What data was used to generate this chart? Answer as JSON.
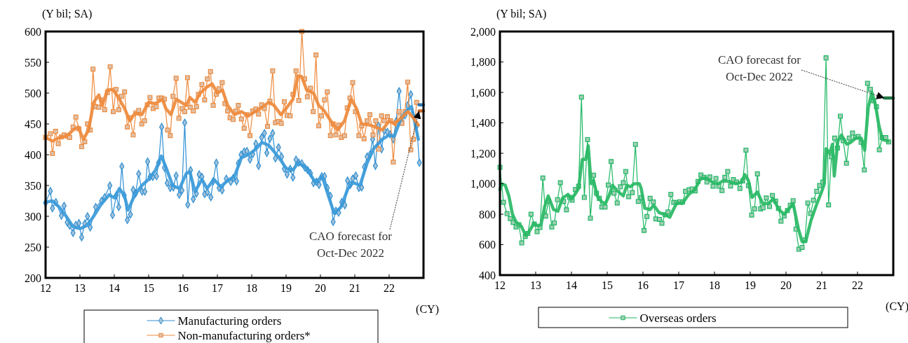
{
  "chart_data": [
    {
      "type": "line",
      "ylabel": "(Y bil; SA)",
      "xlabel": "(CY)",
      "xlim": [
        12,
        23
      ],
      "xticks": [
        12,
        13,
        14,
        15,
        16,
        17,
        18,
        19,
        20,
        21,
        22
      ],
      "ylim": [
        200,
        600
      ],
      "yticks": [
        200,
        250,
        300,
        350,
        400,
        450,
        500,
        550,
        600
      ],
      "grid": false,
      "legend": "bottom",
      "annotations": [
        {
          "text": "CAO forecast for\nOct-Dec 2022",
          "x": 22.87,
          "y": 471
        }
      ],
      "series": [
        {
          "name": "Manufacturing orders",
          "color": "#2e8fd4",
          "marker": "diamond",
          "x": [
            12.0,
            12.14,
            12.2,
            12.3,
            12.46,
            12.54,
            12.63,
            12.7,
            12.8,
            12.88,
            12.97,
            13.05,
            13.14,
            13.22,
            13.3,
            13.46,
            13.63,
            13.72,
            13.87,
            13.95,
            14.06,
            14.13,
            14.22,
            14.29,
            14.38,
            14.47,
            14.55,
            14.62,
            14.71,
            14.81,
            14.89,
            14.97,
            15.04,
            15.12,
            15.23,
            15.29,
            15.38,
            15.46,
            15.54,
            15.63,
            15.72,
            15.8,
            15.89,
            15.97,
            16.05,
            16.14,
            16.22,
            16.3,
            16.39,
            16.47,
            16.55,
            16.63,
            16.71,
            16.81,
            16.88,
            16.97,
            17.05,
            17.14,
            17.26,
            17.39,
            17.46,
            17.56,
            17.61,
            17.69,
            17.78,
            17.86,
            17.95,
            18.03,
            18.12,
            18.2,
            18.29,
            18.37,
            18.44,
            18.53,
            18.61,
            18.69,
            18.78,
            18.87,
            18.95,
            19.03,
            19.12,
            19.2,
            19.29,
            19.37,
            19.46,
            19.55,
            19.63,
            19.71,
            19.8,
            19.88,
            19.96,
            20.04,
            20.12,
            20.2,
            20.29,
            20.37,
            20.45,
            20.53,
            20.62,
            20.71,
            20.79,
            20.87,
            20.94,
            21.03,
            21.12,
            21.2,
            21.28,
            21.36,
            21.44,
            21.52,
            21.6,
            21.69,
            21.78,
            21.86,
            21.95,
            22.03,
            22.12,
            22.2,
            22.29,
            22.37,
            22.46,
            22.54,
            22.63,
            22.71,
            22.8,
            22.88
          ],
          "values": [
            322,
            341,
            313,
            323,
            301,
            317,
            290,
            285,
            273,
            286,
            289,
            266,
            288,
            300,
            282,
            315,
            325,
            331,
            350,
            302,
            334,
            315,
            381,
            334,
            294,
            303,
            343,
            337,
            369,
            340,
            340,
            389,
            364,
            364,
            365,
            387,
            445,
            379,
            354,
            346,
            347,
            366,
            335,
            342,
            452,
            319,
            375,
            328,
            337,
            368,
            364,
            336,
            339,
            331,
            357,
            387,
            346,
            342,
            361,
            356,
            362,
            357,
            386,
            400,
            405,
            406,
            392,
            401,
            418,
            382,
            428,
            435,
            403,
            426,
            435,
            394,
            412,
            397,
            377,
            368,
            377,
            363,
            392,
            387,
            386,
            379,
            375,
            370,
            354,
            356,
            351,
            365,
            365,
            346,
            333,
            291,
            309,
            306,
            323,
            318,
            358,
            351,
            361,
            366,
            346,
            347,
            380,
            397,
            400,
            425,
            382,
            447,
            409,
            439,
            437,
            433,
            425,
            454,
            503,
            454,
            464,
            480,
            498,
            462,
            447,
            387
          ]
        },
        {
          "name": "Non-manufacturing orders*",
          "color": "#ee8a3c",
          "marker": "square",
          "x": [
            12.0,
            12.14,
            12.2,
            12.29,
            12.37,
            12.46,
            12.54,
            12.63,
            12.7,
            12.8,
            12.88,
            12.97,
            13.05,
            13.14,
            13.22,
            13.3,
            13.38,
            13.46,
            13.55,
            13.63,
            13.72,
            13.8,
            13.88,
            13.97,
            14.05,
            14.13,
            14.21,
            14.3,
            14.38,
            14.46,
            14.55,
            14.63,
            14.71,
            14.8,
            14.88,
            14.96,
            15.04,
            15.13,
            15.22,
            15.3,
            15.38,
            15.46,
            15.55,
            15.63,
            15.71,
            15.8,
            15.88,
            15.97,
            16.05,
            16.13,
            16.21,
            16.3,
            16.39,
            16.45,
            16.55,
            16.63,
            16.71,
            16.8,
            16.88,
            16.97,
            17.05,
            17.14,
            17.22,
            17.3,
            17.37,
            17.46,
            17.54,
            17.61,
            17.7,
            17.78,
            17.86,
            17.95,
            18.03,
            18.12,
            18.2,
            18.29,
            18.37,
            18.46,
            18.53,
            18.61,
            18.69,
            18.78,
            18.86,
            18.95,
            19.03,
            19.12,
            19.2,
            19.29,
            19.37,
            19.46,
            19.54,
            19.62,
            19.71,
            19.79,
            19.87,
            19.95,
            20.03,
            20.12,
            20.2,
            20.29,
            20.37,
            20.45,
            20.53,
            20.61,
            20.7,
            20.78,
            20.86,
            20.94,
            21.02,
            21.12,
            21.2,
            21.27,
            21.36,
            21.44,
            21.53,
            21.61,
            21.69,
            21.78,
            21.86,
            21.95,
            22.04,
            22.12,
            22.2,
            22.29,
            22.37,
            22.46,
            22.54,
            22.63,
            22.71,
            22.8
          ],
          "values": [
            428,
            434,
            402,
            438,
            418,
            429,
            432,
            430,
            428,
            445,
            461,
            442,
            413,
            421,
            450,
            440,
            539,
            478,
            477,
            489,
            473,
            501,
            543,
            470,
            506,
            473,
            495,
            502,
            445,
            460,
            432,
            468,
            472,
            450,
            455,
            481,
            493,
            475,
            478,
            492,
            492,
            490,
            440,
            431,
            495,
            524,
            459,
            475,
            470,
            525,
            477,
            471,
            478,
            498,
            514,
            489,
            523,
            535,
            480,
            498,
            507,
            517,
            483,
            471,
            460,
            457,
            471,
            480,
            458,
            443,
            465,
            431,
            471,
            474,
            466,
            481,
            475,
            446,
            487,
            536,
            452,
            454,
            451,
            486,
            464,
            463,
            498,
            536,
            488,
            600,
            523,
            494,
            508,
            470,
            562,
            447,
            463,
            489,
            502,
            431,
            450,
            432,
            448,
            428,
            431,
            476,
            492,
            517,
            470,
            431,
            447,
            426,
            455,
            465,
            432,
            455,
            409,
            463,
            455,
            462,
            455,
            388,
            451,
            470,
            451,
            470,
            518,
            408,
            425,
            485
          ]
        },
        {
          "color": "#3a9ad9",
          "marker": "none",
          "x": [
            12.0,
            12.2,
            12.4,
            12.6,
            12.8,
            13.0,
            13.2,
            13.4,
            13.6,
            13.85,
            14.0,
            14.15,
            14.3,
            14.4,
            14.6,
            14.8,
            15.0,
            15.2,
            15.37,
            15.5,
            15.7,
            15.9,
            16.1,
            16.2,
            16.35,
            16.55,
            16.7,
            16.9,
            17.1,
            17.3,
            17.5,
            17.7,
            17.9,
            18.1,
            18.3,
            18.5,
            18.8,
            19.0,
            19.2,
            19.35,
            19.6,
            19.85,
            20.05,
            20.25,
            20.4,
            20.6,
            20.8,
            20.95,
            21.15,
            21.35,
            21.55,
            21.8,
            22.0,
            22.15,
            22.35,
            22.5,
            22.65,
            22.85
          ],
          "values": [
            323,
            325,
            315,
            300,
            283,
            280,
            285,
            300,
            318,
            335,
            330,
            345,
            333,
            310,
            335,
            350,
            360,
            375,
            398,
            380,
            350,
            345,
            370,
            372,
            340,
            360,
            345,
            360,
            348,
            358,
            365,
            395,
            400,
            408,
            420,
            415,
            395,
            378,
            375,
            387,
            378,
            355,
            365,
            330,
            305,
            315,
            345,
            355,
            350,
            385,
            410,
            425,
            432,
            430,
            460,
            470,
            478,
            425
          ]
        },
        {
          "color": "#ee8a3c",
          "marker": "none",
          "x": [
            12.0,
            12.2,
            12.4,
            12.6,
            12.8,
            12.95,
            13.1,
            13.25,
            13.4,
            13.55,
            13.65,
            13.8,
            13.95,
            14.1,
            14.3,
            14.45,
            14.6,
            14.8,
            15.0,
            15.2,
            15.4,
            15.5,
            15.65,
            15.8,
            15.95,
            16.1,
            16.2,
            16.35,
            16.5,
            16.7,
            16.85,
            17.0,
            17.15,
            17.3,
            17.5,
            17.7,
            17.9,
            18.1,
            18.3,
            18.5,
            18.65,
            18.85,
            19.0,
            19.2,
            19.35,
            19.45,
            19.6,
            19.8,
            19.95,
            20.1,
            20.3,
            20.5,
            20.7,
            20.9,
            21.05,
            21.2,
            21.45,
            21.6,
            21.8,
            22.0,
            22.15,
            22.35,
            22.55,
            22.7,
            22.85
          ],
          "values": [
            428,
            422,
            428,
            430,
            440,
            445,
            425,
            440,
            485,
            497,
            480,
            505,
            506,
            495,
            475,
            455,
            467,
            465,
            485,
            483,
            490,
            475,
            465,
            490,
            485,
            480,
            493,
            485,
            500,
            510,
            515,
            500,
            505,
            480,
            465,
            470,
            463,
            470,
            477,
            485,
            480,
            465,
            475,
            490,
            528,
            527,
            505,
            500,
            480,
            472,
            455,
            440,
            455,
            490,
            475,
            450,
            448,
            445,
            440,
            455,
            450,
            460,
            470,
            460,
            448
          ]
        },
        {
          "color": "#1f6fae",
          "marker": "none",
          "x": [
            22.87,
            23
          ],
          "values": [
            481,
            481
          ]
        },
        {
          "color": "#c55a11",
          "marker": "none",
          "x": [
            22.87,
            23
          ],
          "values": [
            471,
            471
          ]
        }
      ]
    },
    {
      "type": "line",
      "ylabel": "(Y bil; SA)",
      "xlabel": "(CY)",
      "xlim": [
        12,
        23
      ],
      "xticks": [
        12,
        13,
        14,
        15,
        16,
        17,
        18,
        19,
        20,
        21,
        22
      ],
      "ylim": [
        400,
        2000
      ],
      "yticks": [
        {
          "value": 400,
          "label": "400"
        },
        {
          "value": 600,
          "label": "600"
        },
        {
          "value": 800,
          "label": "800"
        },
        {
          "value": 1000,
          "label": "1,000"
        },
        {
          "value": 1200,
          "label": "1,200"
        },
        {
          "value": 1400,
          "label": "1,400"
        },
        {
          "value": 1600,
          "label": "1,600"
        },
        {
          "value": 1800,
          "label": "1,800"
        },
        {
          "value": 2000,
          "label": "2,000"
        }
      ],
      "grid": false,
      "legend": "bottom",
      "annotations": [
        {
          "text": "CAO forecast for\nOct-Dec 2022",
          "x": 22.75,
          "y": 1563
        }
      ],
      "series": [
        {
          "name": "Overseas orders",
          "color": "#1fb863",
          "marker": "square",
          "x": [
            12.0,
            12.1,
            12.2,
            12.29,
            12.37,
            12.45,
            12.53,
            12.61,
            12.71,
            12.78,
            12.87,
            12.96,
            13.04,
            13.12,
            13.2,
            13.28,
            13.36,
            13.45,
            13.52,
            13.61,
            13.69,
            13.78,
            13.86,
            13.95,
            14.02,
            14.11,
            14.2,
            14.28,
            14.36,
            14.45,
            14.53,
            14.62,
            14.7,
            14.78,
            14.85,
            14.94,
            15.03,
            15.11,
            15.19,
            15.28,
            15.37,
            15.45,
            15.52,
            15.6,
            15.7,
            15.79,
            15.87,
            15.95,
            16.03,
            16.11,
            16.2,
            16.29,
            16.36,
            16.46,
            16.53,
            16.62,
            16.7,
            16.78,
            16.86,
            16.94,
            17.03,
            17.11,
            17.19,
            17.29,
            17.38,
            17.46,
            17.54,
            17.62,
            17.71,
            17.79,
            17.87,
            17.96,
            18.04,
            18.12,
            18.21,
            18.29,
            18.37,
            18.45,
            18.53,
            18.62,
            18.71,
            18.79,
            18.88,
            18.95,
            19.04,
            19.12,
            19.2,
            19.29,
            19.36,
            19.45,
            19.54,
            19.62,
            19.71,
            19.79,
            19.86,
            19.95,
            20.04,
            20.12,
            20.2,
            20.28,
            20.36,
            20.45,
            20.53,
            20.61,
            20.69,
            20.77,
            20.86,
            20.94,
            21.03,
            21.12,
            21.19,
            21.27,
            21.36,
            21.44,
            21.52,
            21.6,
            21.69,
            21.77,
            21.86,
            21.94,
            22.02,
            22.1,
            22.19,
            22.28,
            22.36,
            22.45,
            22.53,
            22.61,
            22.69,
            22.79,
            22.87
          ],
          "values": [
            1108,
            878,
            803,
            771,
            746,
            716,
            731,
            611,
            654,
            674,
            800,
            736,
            685,
            713,
            1038,
            788,
            889,
            716,
            743,
            895,
            1007,
            884,
            829,
            910,
            892,
            962,
            984,
            1569,
            910,
            1290,
            774,
            1056,
            938,
            904,
            847,
            847,
            992,
            1146,
            938,
            874,
            980,
            1007,
            1080,
            915,
            942,
            1259,
            884,
            909,
            693,
            785,
            904,
            880,
            769,
            766,
            740,
            797,
            815,
            930,
            877,
            877,
            881,
            880,
            950,
            961,
            965,
            953,
            1015,
            1057,
            1042,
            1011,
            1045,
            984,
            1034,
            984,
            955,
            1042,
            1080,
            985,
            1027,
            1011,
            969,
            1019,
            1221,
            988,
            794,
            835,
            1065,
            835,
            843,
            907,
            851,
            923,
            886,
            838,
            754,
            789,
            824,
            858,
            889,
            702,
            570,
            582,
            631,
            874,
            805,
            892,
            950,
            988,
            1011,
            1827,
            861,
            1177,
            1300,
            1234,
            1444,
            1283,
            1134,
            1300,
            1333,
            1306,
            1310,
            1272,
            1091,
            1660,
            1621,
            1545,
            1506,
            1223,
            1303,
            1303,
            1275
          ]
        },
        {
          "color": "#28b864",
          "marker": "none",
          "x": [
            12.0,
            12.05,
            12.15,
            12.25,
            12.35,
            12.45,
            12.6,
            12.72,
            12.8,
            12.95,
            13.05,
            13.15,
            13.25,
            13.35,
            13.5,
            13.62,
            13.75,
            13.9,
            14.0,
            14.1,
            14.2,
            14.3,
            14.4,
            14.47,
            14.55,
            14.62,
            14.72,
            14.85,
            14.95,
            15.05,
            15.15,
            15.3,
            15.45,
            15.55,
            15.65,
            15.75,
            15.9,
            15.95,
            16.05,
            16.2,
            16.3,
            16.45,
            16.6,
            16.75,
            16.85,
            16.95,
            17.1,
            17.28,
            17.45,
            17.6,
            17.75,
            17.95,
            18.1,
            18.25,
            18.4,
            18.6,
            18.75,
            18.85,
            18.95,
            19.05,
            19.2,
            19.35,
            19.5,
            19.65,
            19.8,
            19.95,
            20.1,
            20.2,
            20.35,
            20.45,
            20.55,
            20.7,
            20.85,
            21.0,
            21.07,
            21.12,
            21.22,
            21.3,
            21.35,
            21.45,
            21.55,
            21.7,
            21.8,
            21.95,
            22.1,
            22.2,
            22.3,
            22.4,
            22.5,
            22.6,
            22.7,
            22.85
          ],
          "values": [
            960,
            1000,
            990,
            920,
            800,
            750,
            720,
            660,
            680,
            740,
            725,
            730,
            850,
            920,
            830,
            820,
            905,
            930,
            900,
            930,
            970,
            1160,
            1160,
            1250,
            1000,
            1020,
            920,
            880,
            870,
            920,
            990,
            950,
            920,
            990,
            980,
            1000,
            1000,
            970,
            840,
            830,
            860,
            810,
            800,
            780,
            830,
            875,
            870,
            930,
            960,
            1030,
            1040,
            1010,
            1000,
            1020,
            1015,
            1000,
            1010,
            1060,
            1020,
            910,
            945,
            870,
            870,
            900,
            830,
            800,
            840,
            870,
            700,
            620,
            620,
            760,
            860,
            950,
            1000,
            1230,
            1200,
            1260,
            1050,
            1280,
            1320,
            1260,
            1270,
            1300,
            1300,
            1220,
            1500,
            1600,
            1520,
            1380,
            1290,
            1280
          ]
        },
        {
          "color": "#0f6b35",
          "marker": "none",
          "x": [
            22.75,
            23
          ],
          "values": [
            1563,
            1563
          ]
        }
      ]
    }
  ]
}
